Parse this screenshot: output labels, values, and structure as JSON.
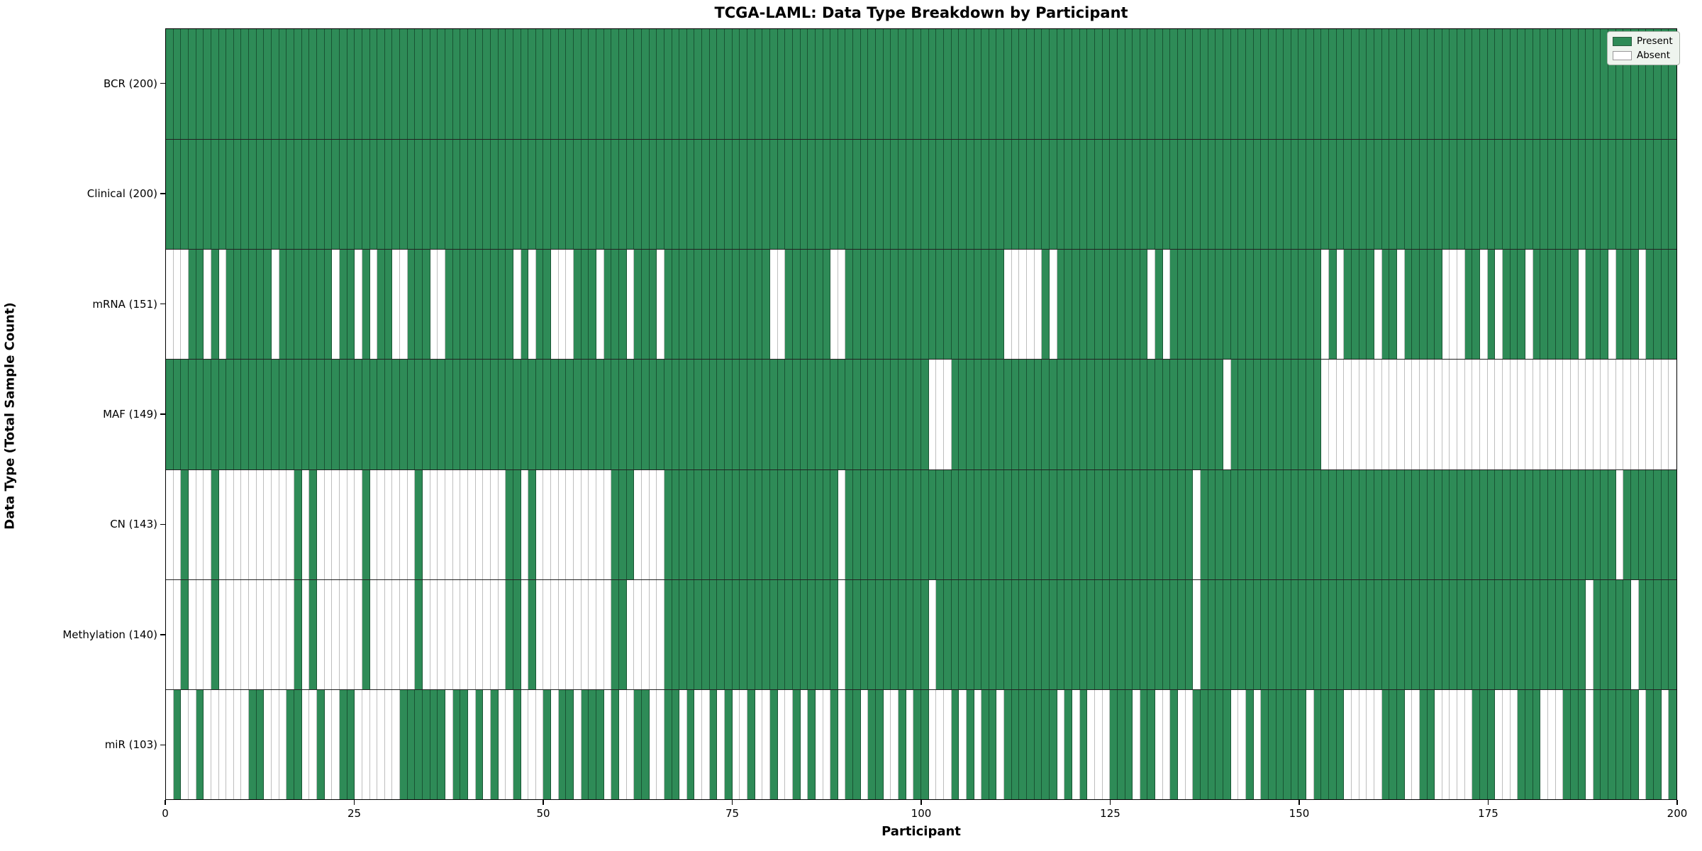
{
  "title": "TCGA-LAML: Data Type Breakdown by Participant",
  "axes": {
    "x_label": "Participant",
    "y_label": "Data Type (Total Sample Count)",
    "x_ticks": [
      0,
      25,
      50,
      75,
      100,
      125,
      150,
      175,
      200
    ],
    "x_range": [
      0,
      200
    ]
  },
  "legend": {
    "items": [
      {
        "label": "Present",
        "color": "#2e8b57"
      },
      {
        "label": "Absent",
        "color": "#ffffff"
      }
    ]
  },
  "colors": {
    "present": "#2e8b57",
    "absent": "#ffffff",
    "row_separator": "#222222",
    "spine": "#000000"
  },
  "chart_data": {
    "type": "heatmap",
    "title": "TCGA-LAML: Data Type Breakdown by Participant",
    "xlabel": "Participant",
    "ylabel": "Data Type (Total Sample Count)",
    "x_range": [
      0,
      200
    ],
    "n_participants": 200,
    "legend_position": "upper right",
    "cell_states": {
      "present": "1",
      "absent": "0"
    },
    "rows": [
      {
        "label": "BCR (200)",
        "name": "BCR",
        "total": 200,
        "pattern": "1111111111111111111111111111111111111111111111111111111111111111111111111111111111111111111111111111111111111111111111111111111111111111111111111111111111111111111111111111111111111111111111111111111111"
      },
      {
        "label": "Clinical (200)",
        "name": "Clinical",
        "total": 200,
        "pattern": "1111111111111111111111111111111111111111111111111111111111111111111111111111111111111111111111111111111111111111111111111111111111111111111111111111111111111111111111111111111111111111111111111111111111"
      },
      {
        "label": "mRNA (151)",
        "name": "mRNA",
        "total": 151,
        "pattern": "0001101011111101111111011010110011100111111111010110001110111011101111111111111100111111001111111111111111111110000010111111111111010111111111111111111110101111011011111000110101110111111011101110111110011111"
      },
      {
        "label": "MAF (149)",
        "name": "MAF",
        "total": 149,
        "pattern": "1111111111111111111111111111111111111111111111111111111111111111111111111111111111111111111111111111100011111111111111111111111111111111111101111111111110000000000000000000000000000000000000000000000000000000"
      },
      {
        "label": "CN (143)",
        "name": "CN",
        "total": 143,
        "pattern": "0010001000000000010100000010000001000000000001101000000000011100001111111111111111111111101111111111111111111111111111111111111111111111011111111111111111111111111111111111111111111111111111110111111111"
      },
      {
        "label": "Methylation (140)",
        "name": "Methylation",
        "total": 140,
        "pattern": "0010001000000000010100000010000001000000000001101000000000011000001111111111111111111111101111111111101111111111111111111111111111111111011111111111111111111111111111111111111111111111111101111101111111111"
      },
      {
        "label": "miR (103)",
        "name": "miR",
        "total": 103,
        "pattern": "0100100000011000110010011000000111111011010100100010110111010011001101001010010010010100101101100101100010101101111111010100011101100100111110010111111011110000011100110000011100011100011101111110110 1"
      }
    ]
  }
}
